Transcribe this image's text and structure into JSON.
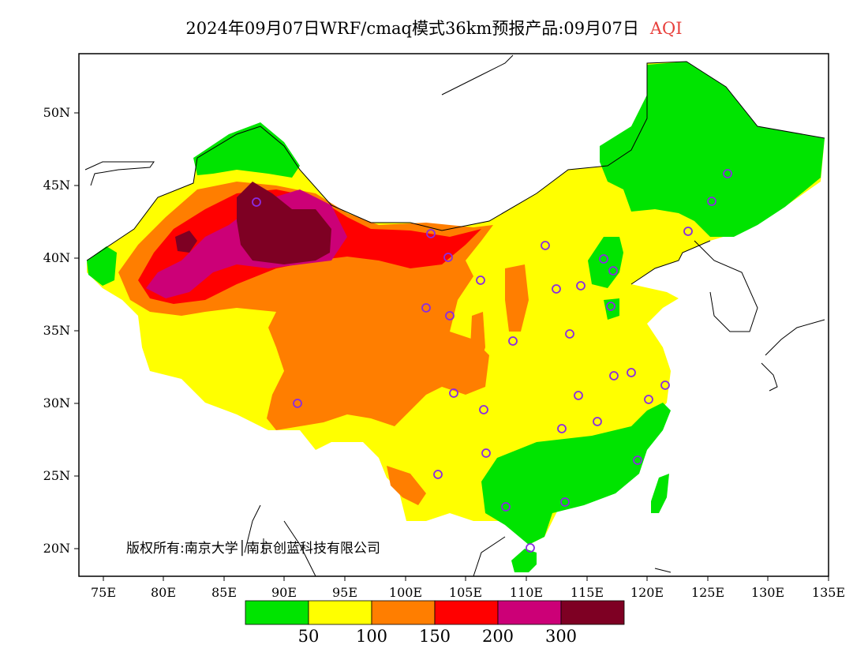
{
  "title": {
    "main": "2024年09月07日WRF/cmaq模式36km预报产品:09月07日",
    "variable": "AQI",
    "variable_color": "#e8403c"
  },
  "axes": {
    "y_ticks": [
      "50N",
      "45N",
      "40N",
      "35N",
      "30N",
      "25N",
      "20N"
    ],
    "x_ticks": [
      "75E",
      "80E",
      "85E",
      "90E",
      "95E",
      "100E",
      "105E",
      "110E",
      "115E",
      "120E",
      "125E",
      "130E",
      "135E"
    ],
    "lon_range": [
      73,
      135
    ],
    "lat_range": [
      18,
      54
    ]
  },
  "copyright": "版权所有:南京大学│南京创蓝科技有限公司",
  "legend": {
    "colors": [
      "#00e400",
      "#ffff00",
      "#ff7e00",
      "#ff0000",
      "#cc0077",
      "#7e0023"
    ],
    "labels": [
      "50",
      "100",
      "150",
      "200",
      "300"
    ]
  },
  "aqi_levels": {
    "green": "#00e400",
    "yellow": "#ffff00",
    "orange": "#ff7e00",
    "red": "#ff0000",
    "purple": "#cc0077",
    "maroon": "#7e0023",
    "station_circle": "#8a2be2"
  }
}
